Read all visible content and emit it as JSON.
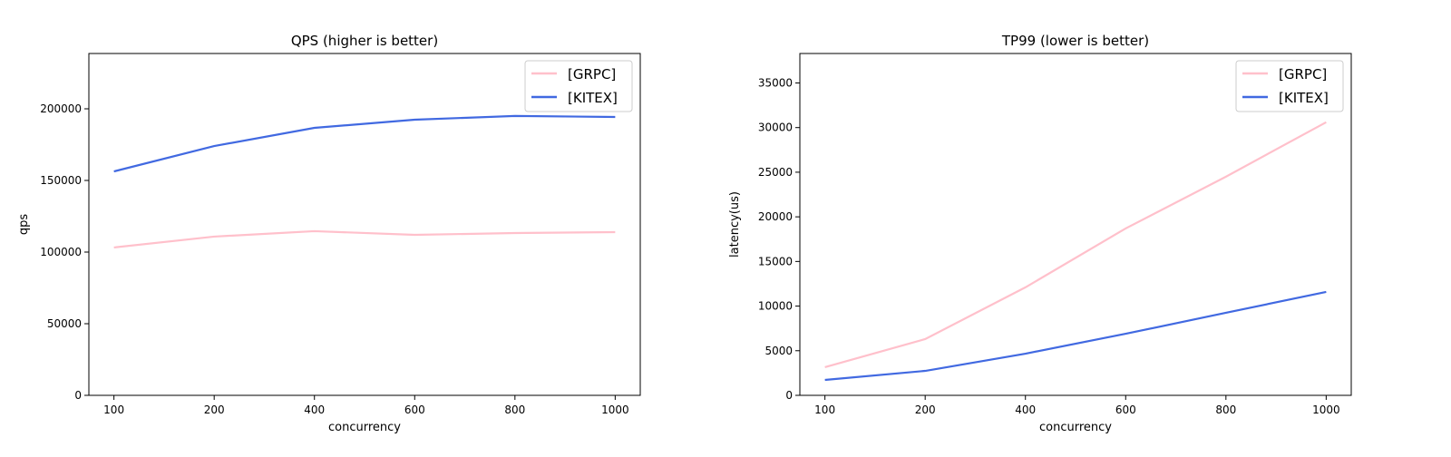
{
  "chart_data": [
    {
      "type": "line",
      "title": "QPS (higher is better)",
      "xlabel": "concurrency",
      "ylabel": "qps",
      "categories": [
        "100",
        "200",
        "400",
        "600",
        "800",
        "1000"
      ],
      "yticks": [
        0,
        50000,
        100000,
        150000,
        200000
      ],
      "ylim": [
        0,
        238600
      ],
      "grid": false,
      "legend": "top-right",
      "series": [
        {
          "name": "[GRPC]",
          "color": "#ffc0cb",
          "values": [
            103200,
            110800,
            114600,
            112000,
            113300,
            113900
          ]
        },
        {
          "name": "[KITEX]",
          "color": "#4169e1",
          "values": [
            156300,
            174000,
            186700,
            192400,
            195000,
            194300
          ]
        }
      ]
    },
    {
      "type": "line",
      "title": "TP99 (lower is better)",
      "xlabel": "concurrency",
      "ylabel": "latency(us)",
      "categories": [
        "100",
        "200",
        "400",
        "600",
        "800",
        "1000"
      ],
      "yticks": [
        0,
        5000,
        10000,
        15000,
        20000,
        25000,
        30000,
        35000
      ],
      "ylim": [
        0,
        38300
      ],
      "grid": false,
      "legend": "top-right",
      "series": [
        {
          "name": "[GRPC]",
          "color": "#ffc0cb",
          "values": [
            3150,
            6300,
            12100,
            18700,
            24500,
            30600
          ]
        },
        {
          "name": "[KITEX]",
          "color": "#4169e1",
          "values": [
            1730,
            2740,
            4670,
            6900,
            9250,
            11590
          ]
        }
      ]
    }
  ]
}
